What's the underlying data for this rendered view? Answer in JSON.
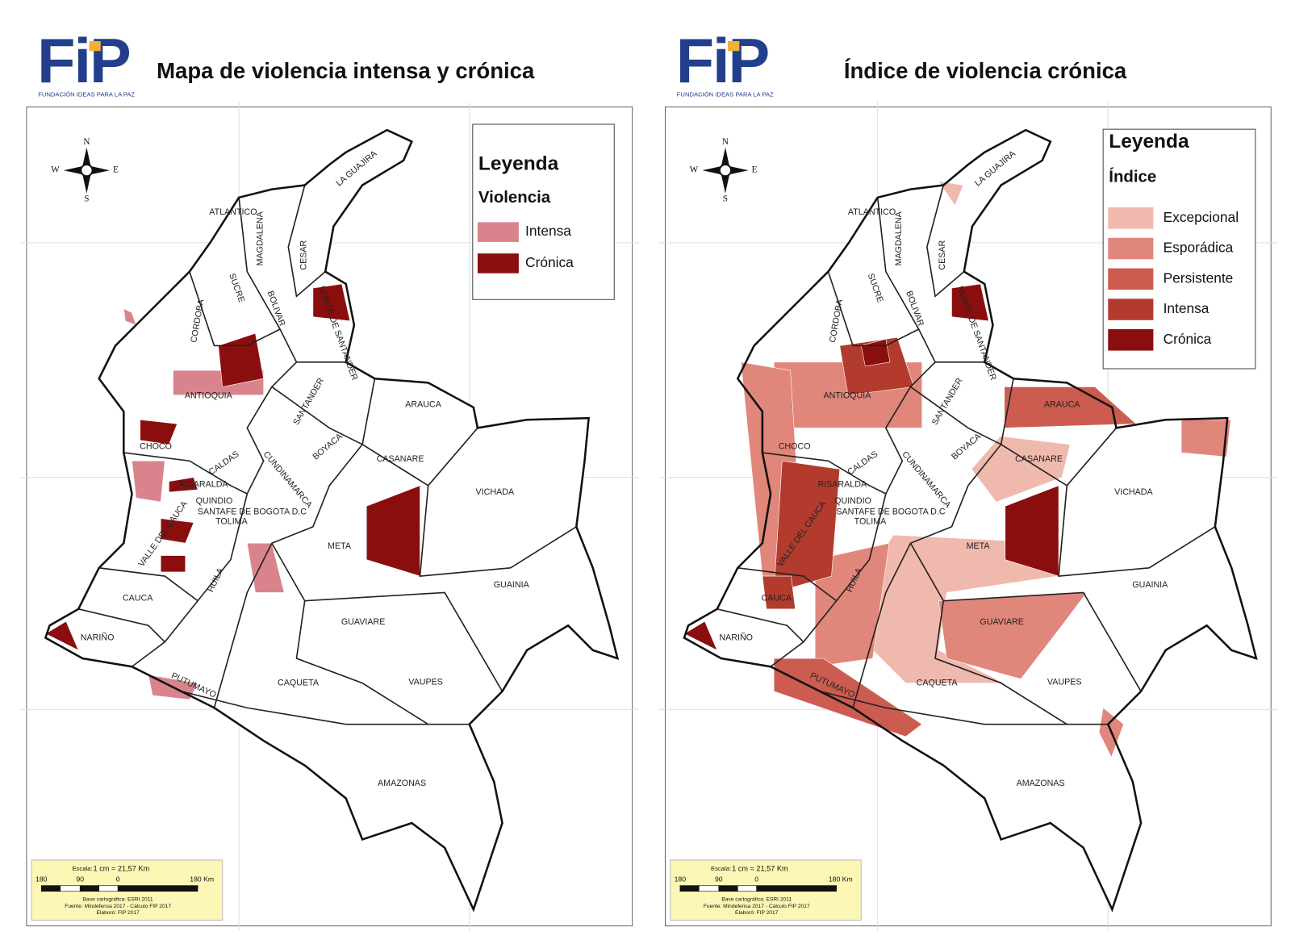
{
  "panels": [
    {
      "logo": {
        "mark": "FiP",
        "caption": "FUNDACIÓN IDEAS PARA LA PAZ"
      },
      "title": "Mapa de violencia intensa y crónica",
      "legend": {
        "title": "Leyenda",
        "subtitle": "Violencia",
        "items": [
          {
            "label": "Intensa",
            "color": "#d9848c"
          },
          {
            "label": "Crónica",
            "color": "#8b0e0e"
          }
        ]
      }
    },
    {
      "logo": {
        "mark": "FiP",
        "caption": "FUNDACIÓN IDEAS PARA LA PAZ"
      },
      "title": "Índice de violencia crónica",
      "legend": {
        "title": "Leyenda",
        "subtitle": "Índice",
        "items": [
          {
            "label": "Excepcional",
            "color": "#f0b9ad"
          },
          {
            "label": "Esporádica",
            "color": "#e0867a"
          },
          {
            "label": "Persistente",
            "color": "#cc5c50"
          },
          {
            "label": "Intensa",
            "color": "#b23b2e"
          },
          {
            "label": "Crónica",
            "color": "#8b0e0e"
          }
        ]
      }
    }
  ],
  "compass": {
    "north": "N",
    "south": "S",
    "east": "E",
    "west": "W"
  },
  "map_labels": [
    "LA GUAJIRA",
    "ATLANTICO",
    "MAGDALENA",
    "CESAR",
    "SUCRE",
    "BOLIVAR",
    "CORDOBA",
    "NORTE DE SANTANDER",
    "ANTIOQUIA",
    "SANTANDER",
    "ARAUCA",
    "CHOCO",
    "CALDAS",
    "BOYACA",
    "CASANARE",
    "RISARALDA",
    "CUNDINAMARCA",
    "VICHADA",
    "QUINDIO",
    "SANTAFE DE BOGOTA D.C",
    "TOLIMA",
    "VALLE DEL CAUCA",
    "META",
    "HUILA",
    "GUAINIA",
    "CAUCA",
    "GUAVIARE",
    "NARIÑO",
    "CAQUETA",
    "VAUPES",
    "PUTUMAYO",
    "AMAZONAS"
  ],
  "scale": {
    "title": "Escala:",
    "ratio": "1 cm = 21,57 Km",
    "ticks": [
      "180",
      "90",
      "0",
      "180 Km"
    ],
    "credits": [
      "Base cartográfica: ESRI 2011",
      "Fuente: Mindefensa 2017 - Cálculo FIP 2017",
      "Elaboró: FIP 2017"
    ]
  }
}
